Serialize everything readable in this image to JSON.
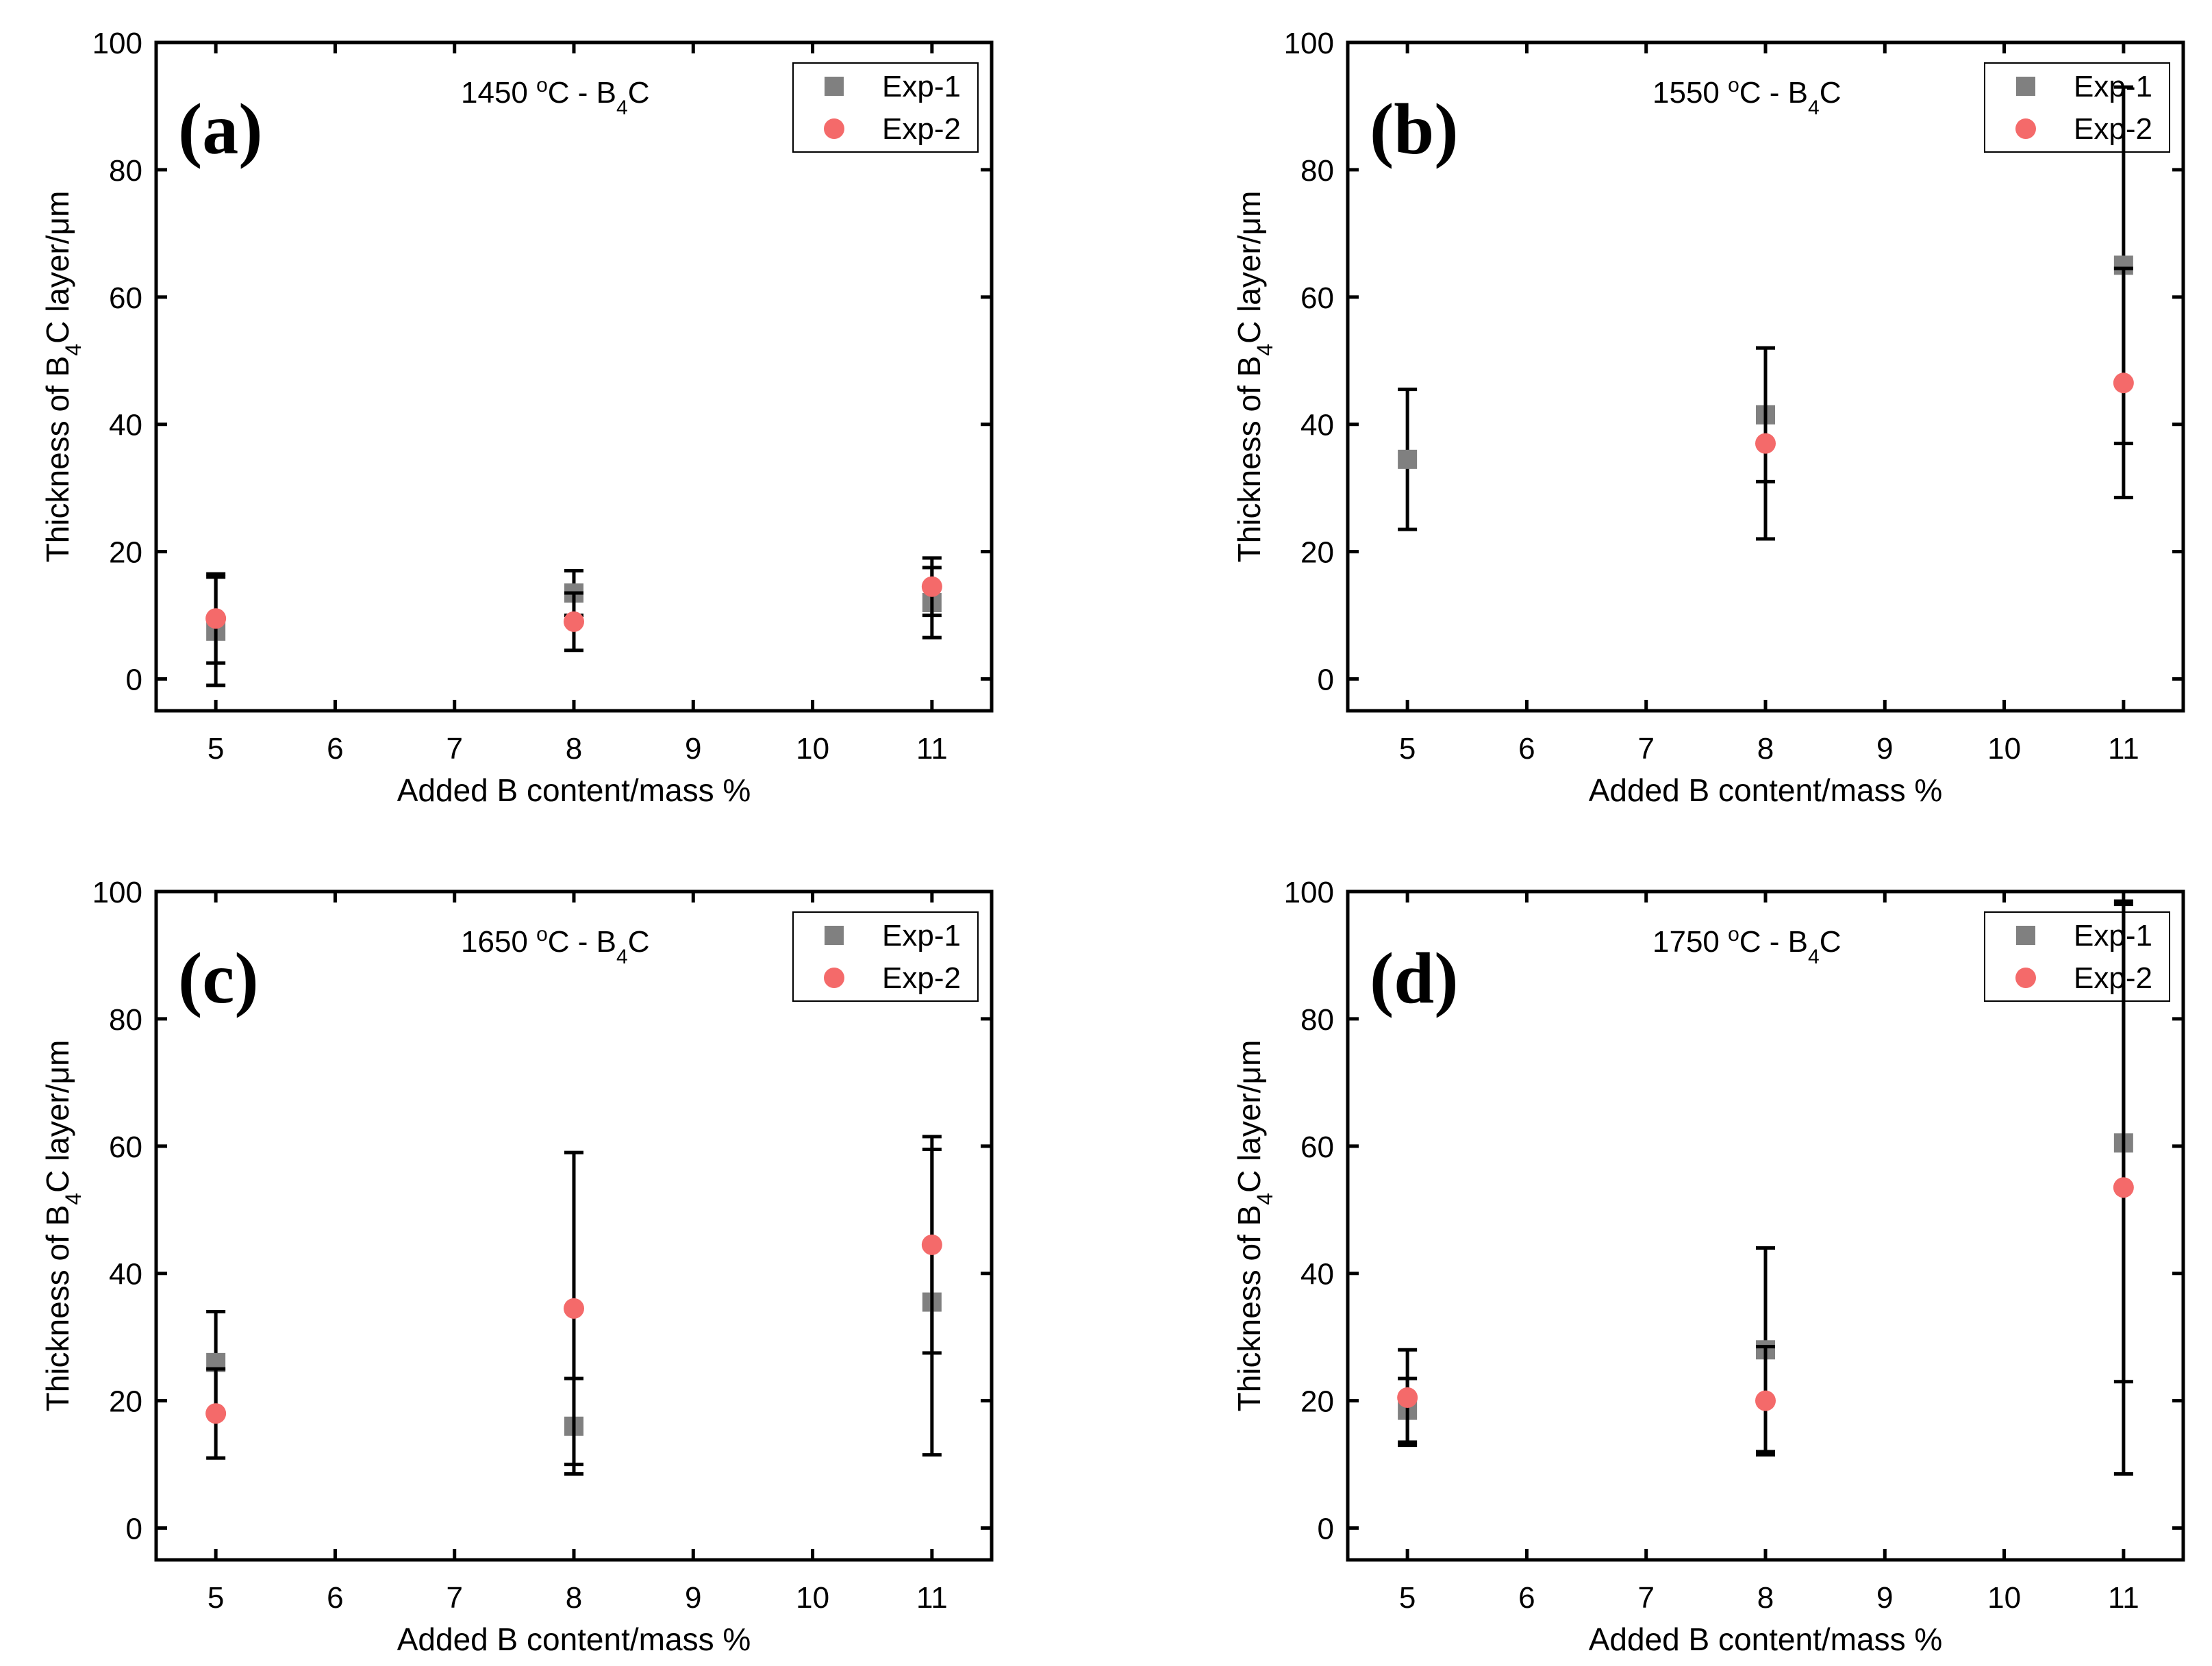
{
  "colors": {
    "exp1": "#808080",
    "exp2": "#f46a6a",
    "axis": "#000000",
    "errorbar": "#000000"
  },
  "chart_data": [
    {
      "type": "scatter",
      "panel_label": "(a)",
      "title_prefix": "1450 ",
      "title_deg": "o",
      "title_mid": "C - B",
      "title_sub": "4",
      "title_suffix": "C",
      "xlabel": "Added B content/mass %",
      "ylabel_prefix": "Thickness of B",
      "ylabel_sub": "4",
      "ylabel_suffix": "C layer/μm",
      "xlim": [
        4.5,
        11.5
      ],
      "ylim": [
        -5,
        100
      ],
      "xticks": [
        5,
        6,
        7,
        8,
        9,
        10,
        11
      ],
      "yticks": [
        0,
        20,
        40,
        60,
        80,
        100
      ],
      "legend_position": "top-right",
      "series": [
        {
          "name": "Exp-1",
          "marker": "square",
          "x": [
            5,
            8,
            11
          ],
          "y": [
            7.5,
            13.5,
            12
          ],
          "err": [
            8.5,
            3.5,
            5.5
          ]
        },
        {
          "name": "Exp-2",
          "marker": "circle",
          "x": [
            5,
            8,
            11
          ],
          "y": [
            9.5,
            9,
            14.5
          ],
          "err": [
            7,
            4.5,
            4.5
          ]
        }
      ]
    },
    {
      "type": "scatter",
      "panel_label": "(b)",
      "title_prefix": "1550 ",
      "title_deg": "o",
      "title_mid": "C - B",
      "title_sub": "4",
      "title_suffix": "C",
      "xlabel": "Added B content/mass %",
      "ylabel_prefix": "Thickness of B",
      "ylabel_sub": "4",
      "ylabel_suffix": "C layer/μm",
      "xlim": [
        4.5,
        11.5
      ],
      "ylim": [
        -5,
        100
      ],
      "xticks": [
        5,
        6,
        7,
        8,
        9,
        10,
        11
      ],
      "yticks": [
        0,
        20,
        40,
        60,
        80,
        100
      ],
      "legend_position": "top-right",
      "series": [
        {
          "name": "Exp-1",
          "marker": "square",
          "x": [
            5,
            8,
            11
          ],
          "y": [
            34.5,
            41.5,
            65
          ],
          "err": [
            11,
            10.5,
            28
          ]
        },
        {
          "name": "Exp-2",
          "marker": "circle",
          "x": [
            5,
            8,
            11
          ],
          "y": [
            null,
            37,
            46.5
          ],
          "err": [
            null,
            15,
            18
          ]
        }
      ]
    },
    {
      "type": "scatter",
      "panel_label": "(c)",
      "title_prefix": "1650 ",
      "title_deg": "o",
      "title_mid": "C - B",
      "title_sub": "4",
      "title_suffix": "C",
      "xlabel": "Added B content/mass %",
      "ylabel_prefix": "Thickness of B",
      "ylabel_sub": "4",
      "ylabel_suffix": "C layer/μm",
      "xlim": [
        4.5,
        11.5
      ],
      "ylim": [
        -5,
        100
      ],
      "xticks": [
        5,
        6,
        7,
        8,
        9,
        10,
        11
      ],
      "yticks": [
        0,
        20,
        40,
        60,
        80,
        100
      ],
      "legend_position": "top-right",
      "series": [
        {
          "name": "Exp-1",
          "marker": "square",
          "x": [
            5,
            8,
            11
          ],
          "y": [
            26,
            16,
            35.5
          ],
          "err": [
            8,
            7.5,
            24
          ]
        },
        {
          "name": "Exp-2",
          "marker": "circle",
          "x": [
            5,
            8,
            11
          ],
          "y": [
            18,
            34.5,
            44.5
          ],
          "err": [
            7,
            24.5,
            17
          ]
        }
      ]
    },
    {
      "type": "scatter",
      "panel_label": "(d)",
      "title_prefix": "1750 ",
      "title_deg": "o",
      "title_mid": "C - B",
      "title_sub": "4",
      "title_suffix": "C",
      "xlabel": "Added B content/mass %",
      "ylabel_prefix": "Thickness of B",
      "ylabel_sub": "4",
      "ylabel_suffix": "C layer/μm",
      "xlim": [
        4.5,
        11.5
      ],
      "ylim": [
        -5,
        100
      ],
      "xticks": [
        5,
        6,
        7,
        8,
        9,
        10,
        11
      ],
      "yticks": [
        0,
        20,
        40,
        60,
        80,
        100
      ],
      "legend_position": "top-right",
      "series": [
        {
          "name": "Exp-1",
          "marker": "square",
          "x": [
            5,
            8,
            11
          ],
          "y": [
            18.5,
            28,
            60.5
          ],
          "err": [
            5,
            16,
            37.5
          ]
        },
        {
          "name": "Exp-2",
          "marker": "circle",
          "x": [
            5,
            8,
            11
          ],
          "y": [
            20.5,
            20,
            53.5
          ],
          "err": [
            7.5,
            8.5,
            45
          ]
        }
      ]
    }
  ]
}
